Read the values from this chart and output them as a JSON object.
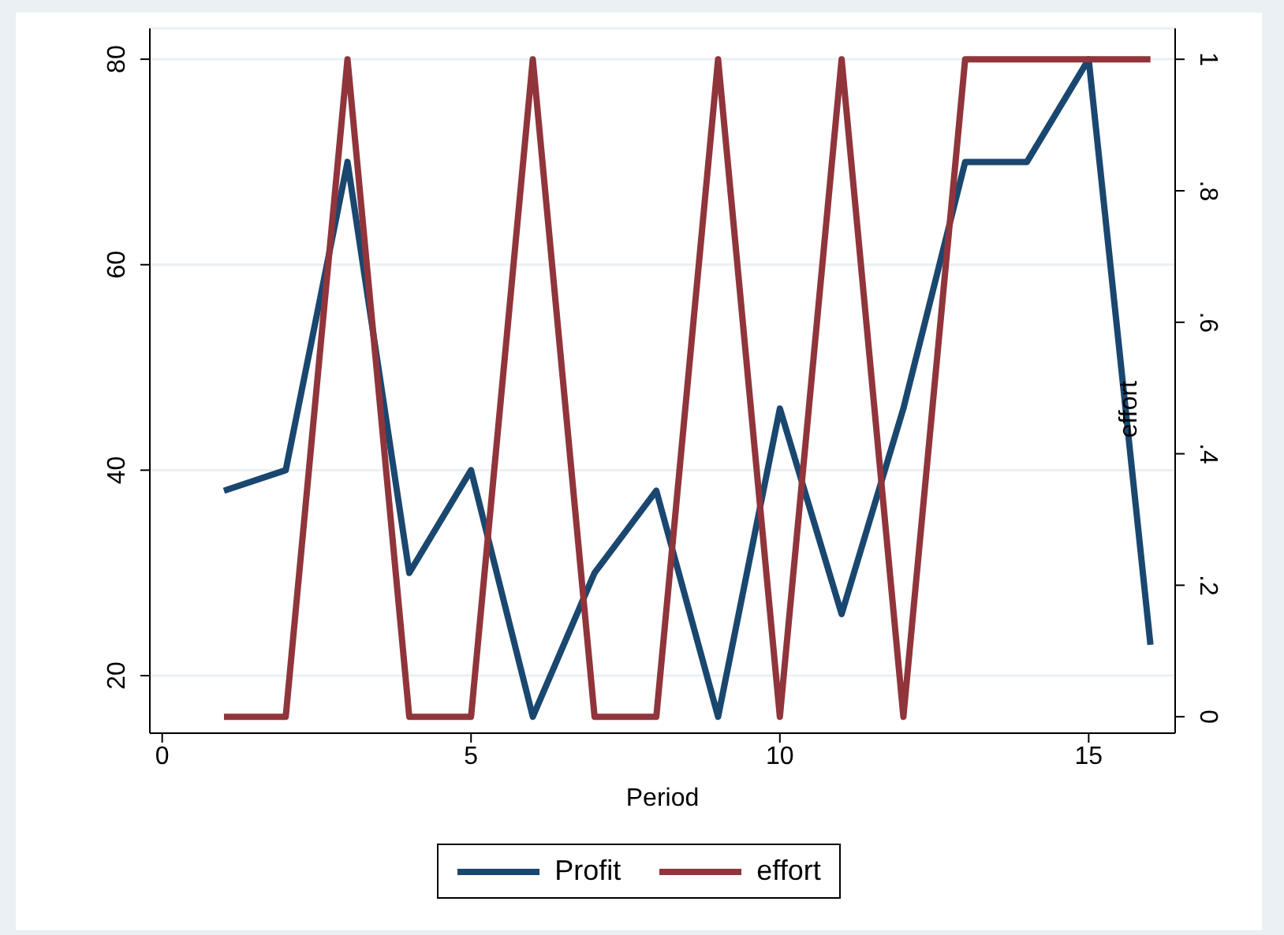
{
  "chart_data": {
    "type": "line",
    "xlabel": "Period",
    "y2label": "effort",
    "x": [
      1,
      2,
      3,
      4,
      5,
      6,
      7,
      8,
      9,
      10,
      11,
      12,
      13,
      14,
      15,
      16
    ],
    "series": [
      {
        "name": "Profit",
        "color": "#1a476f",
        "values": [
          38,
          40,
          70,
          30,
          40,
          16,
          30,
          38,
          16,
          46,
          26,
          46,
          70,
          70,
          80,
          23
        ]
      },
      {
        "name": "effort",
        "color": "#90353b",
        "axis": "y2",
        "values": [
          0,
          0,
          1,
          0,
          0,
          1,
          0,
          0,
          1,
          0,
          1,
          0,
          1,
          1,
          1,
          1
        ]
      }
    ],
    "xlim": [
      -0.2,
      16.4
    ],
    "xticks": [
      0,
      5,
      10,
      15
    ],
    "ylim": [
      14.4,
      83
    ],
    "yticks": [
      20,
      40,
      60,
      80
    ],
    "y2lim": [
      -0.025,
      1.047
    ],
    "y2ticks": [
      {
        "value": 0,
        "label": "0"
      },
      {
        "value": 0.2,
        "label": ".2"
      },
      {
        "value": 0.4,
        "label": ".4"
      },
      {
        "value": 0.6,
        "label": ".6"
      },
      {
        "value": 0.8,
        "label": ".8"
      },
      {
        "value": 1,
        "label": "1"
      }
    ],
    "grid": "y",
    "legend": "bottom",
    "marker": "none",
    "line_style": "solid"
  }
}
